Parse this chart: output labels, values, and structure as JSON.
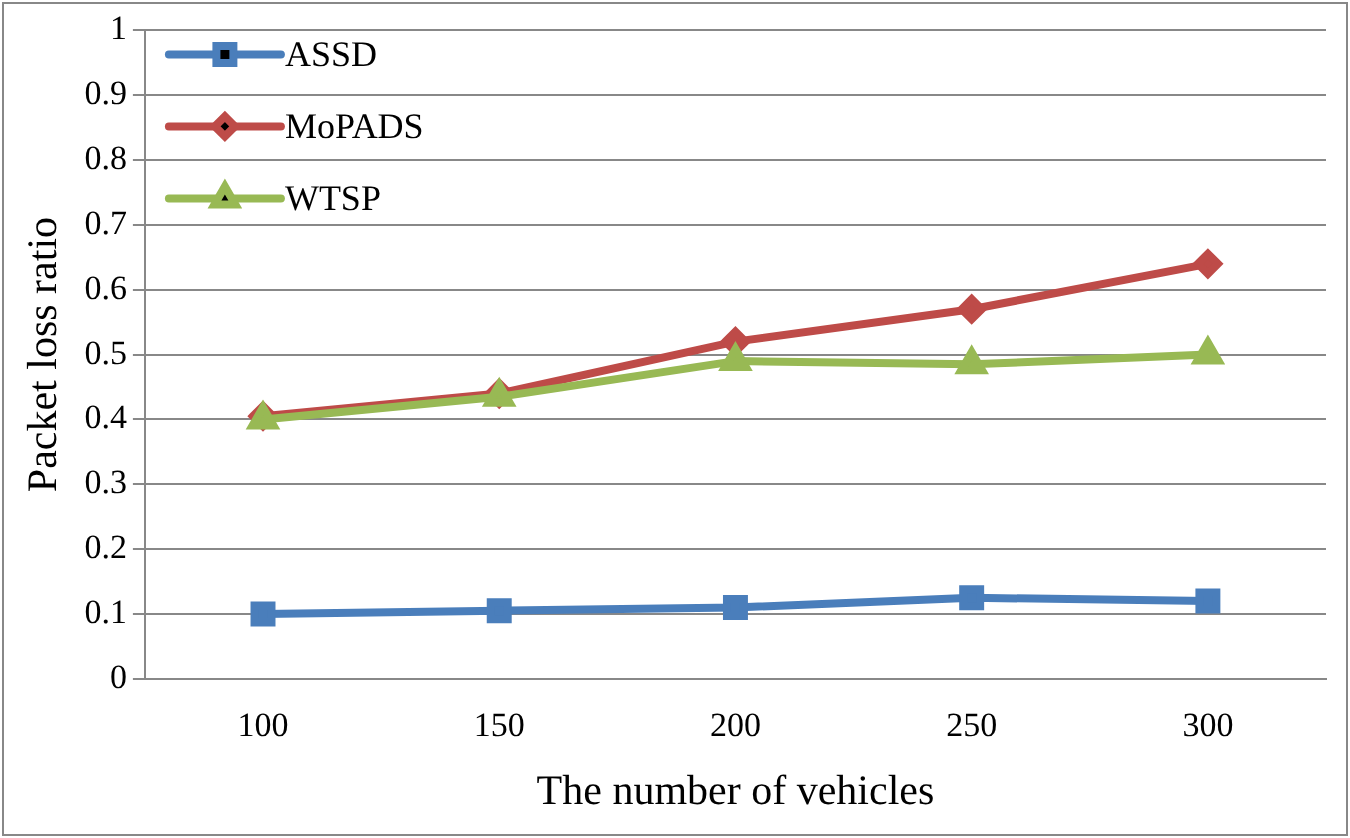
{
  "chart_data": {
    "type": "line",
    "xlabel": "The number of vehicles",
    "ylabel": "Packet loss ratio",
    "categories": [
      "100",
      "150",
      "200",
      "250",
      "300"
    ],
    "series": [
      {
        "name": "ASSD",
        "color": "#4a7ebb",
        "marker": "square",
        "values": [
          0.1,
          0.105,
          0.11,
          0.125,
          0.12
        ]
      },
      {
        "name": "MoPADS",
        "color": "#be4b48",
        "marker": "diamond",
        "values": [
          0.405,
          0.44,
          0.52,
          0.57,
          0.64
        ]
      },
      {
        "name": "WTSP",
        "color": "#98b954",
        "marker": "triangle",
        "values": [
          0.4,
          0.435,
          0.49,
          0.485,
          0.5
        ]
      }
    ],
    "ylim": [
      0,
      1
    ],
    "yticks": [
      0,
      0.1,
      0.2,
      0.3,
      0.4,
      0.5,
      0.6,
      0.7,
      0.8,
      0.9,
      1
    ],
    "grid": "y",
    "legend": "top left",
    "line_style": "solid"
  }
}
